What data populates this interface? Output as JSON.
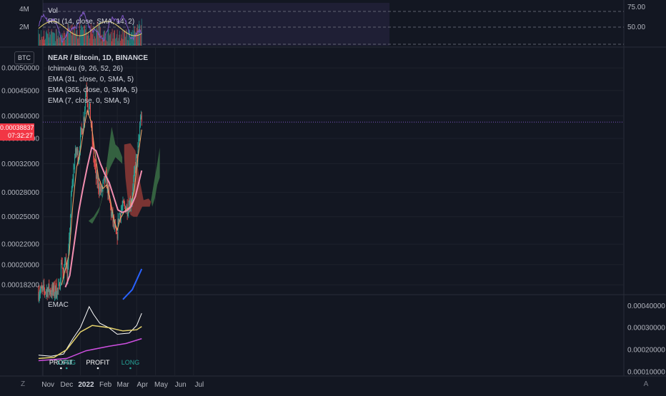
{
  "title": "NEAR / Bitcoin, 1D, BINANCE",
  "legend": {
    "main_title": "NEAR / Bitcoin, 1D, BINANCE",
    "ichimoku": "Ichimoku (9, 26, 52, 26)",
    "ema31": "EMA (31, close, 0, SMA, 5)",
    "ema365": "EMA (365, close, 0, SMA, 5)",
    "ema7": "EMA (7, close, 0, SMA, 5)",
    "vol": "Vol",
    "rsi": "RSI (14, close, SMA, 14, 2)",
    "emac": "EMAC"
  },
  "symbol_badge": "BTC",
  "price_tag": {
    "price": "0.00038837",
    "countdown": "07:32:27"
  },
  "corner_buttons": {
    "left": "Z",
    "right": "A"
  },
  "colors": {
    "up": "#26a69a",
    "down": "#ef5350",
    "ema7": "#f2a96b",
    "ema31": "#f48fb1",
    "ema365": "#2962ff",
    "cloud_green": "#3b6e45",
    "cloud_red": "#8e3a36",
    "rsi": "#7e57c2",
    "rsi_ma": "#e6d36b",
    "emac_white": "#ffffff",
    "emac_yellow": "#e6d36b",
    "emac_purple": "#ce4fe0",
    "current_price_line": "#7e57c2",
    "price_tag_bg": "#f23645"
  },
  "chart_data": [
    {
      "type": "candlestick",
      "title": "NEAR / Bitcoin, 1D, BINANCE",
      "y_scale": "log",
      "ylim": [
        0.000175,
        0.00054
      ],
      "y_ticks": [
        "0.00050000",
        "0.00045000",
        "0.00040000",
        "0.00036000",
        "0.00032000",
        "0.00028000",
        "0.00025000",
        "0.00022000",
        "0.00020000",
        "0.00018200"
      ],
      "x_ticks": [
        "Nov",
        "Dec",
        "2022",
        "Feb",
        "Mar",
        "Apr",
        "May",
        "Jun",
        "Jul"
      ],
      "current_price": 0.00038837,
      "close_path": [
        [
          "2021-10-26",
          0.000176
        ],
        [
          "2021-11-10",
          0.000178
        ],
        [
          "2021-11-20",
          0.000176
        ],
        [
          "2021-11-28",
          0.000178
        ],
        [
          "2021-12-02",
          0.000205
        ],
        [
          "2021-12-05",
          0.000186
        ],
        [
          "2021-12-08",
          0.00021
        ],
        [
          "2021-12-11",
          0.000188
        ],
        [
          "2021-12-14",
          0.00022
        ],
        [
          "2021-12-17",
          0.00027
        ],
        [
          "2021-12-20",
          0.0003
        ],
        [
          "2021-12-23",
          0.00033
        ],
        [
          "2021-12-26",
          0.00034
        ],
        [
          "2021-12-29",
          0.00033
        ],
        [
          "2022-01-01",
          0.00036
        ],
        [
          "2022-01-04",
          0.00038
        ],
        [
          "2022-01-07",
          0.0004
        ],
        [
          "2022-01-10",
          0.00046
        ],
        [
          "2022-01-13",
          0.00042
        ],
        [
          "2022-01-16",
          0.00041
        ],
        [
          "2022-01-19",
          0.00037
        ],
        [
          "2022-01-22",
          0.00033
        ],
        [
          "2022-01-26",
          0.0003
        ],
        [
          "2022-01-30",
          0.00029
        ],
        [
          "2022-02-03",
          0.00028
        ],
        [
          "2022-02-07",
          0.00029
        ],
        [
          "2022-02-10",
          0.0003
        ],
        [
          "2022-02-13",
          0.00029
        ],
        [
          "2022-02-16",
          0.00027
        ],
        [
          "2022-02-19",
          0.000255
        ],
        [
          "2022-02-22",
          0.000245
        ],
        [
          "2022-02-25",
          0.000235
        ],
        [
          "2022-02-28",
          0.000224
        ],
        [
          "2022-03-03",
          0.00025
        ],
        [
          "2022-03-07",
          0.000258
        ],
        [
          "2022-03-12",
          0.000262
        ],
        [
          "2022-03-17",
          0.000262
        ],
        [
          "2022-03-20",
          0.000265
        ],
        [
          "2022-03-24",
          0.000272
        ],
        [
          "2022-03-27",
          0.00029
        ],
        [
          "2022-03-30",
          0.00032
        ],
        [
          "2022-04-02",
          0.00033
        ],
        [
          "2022-04-05",
          0.00036
        ],
        [
          "2022-04-07",
          0.0004
        ],
        [
          "2022-04-09",
          0.000389
        ]
      ],
      "ema7": [
        [
          "2021-12-02",
          0.000182
        ],
        [
          "2021-12-08",
          0.000196
        ],
        [
          "2021-12-14",
          0.00021
        ],
        [
          "2021-12-20",
          0.000265
        ],
        [
          "2021-12-26",
          0.000315
        ],
        [
          "2022-01-01",
          0.00034
        ],
        [
          "2022-01-07",
          0.00038
        ],
        [
          "2022-01-12",
          0.00041
        ],
        [
          "2022-01-18",
          0.00039
        ],
        [
          "2022-01-24",
          0.00034
        ],
        [
          "2022-01-30",
          0.0003
        ],
        [
          "2022-02-06",
          0.000285
        ],
        [
          "2022-02-12",
          0.00029
        ],
        [
          "2022-02-18",
          0.00027
        ],
        [
          "2022-02-24",
          0.000245
        ],
        [
          "2022-03-01",
          0.000235
        ],
        [
          "2022-03-06",
          0.000248
        ],
        [
          "2022-03-14",
          0.000258
        ],
        [
          "2022-03-22",
          0.000262
        ],
        [
          "2022-03-28",
          0.000282
        ],
        [
          "2022-04-03",
          0.00033
        ],
        [
          "2022-04-09",
          0.000375
        ]
      ],
      "ema31": [
        [
          "2021-12-08",
          0.00018
        ],
        [
          "2021-12-15",
          0.00019
        ],
        [
          "2021-12-22",
          0.00022
        ],
        [
          "2021-12-29",
          0.000255
        ],
        [
          "2022-01-05",
          0.000285
        ],
        [
          "2022-01-12",
          0.000315
        ],
        [
          "2022-01-19",
          0.000345
        ],
        [
          "2022-01-26",
          0.00034
        ],
        [
          "2022-02-02",
          0.00032
        ],
        [
          "2022-02-09",
          0.000305
        ],
        [
          "2022-02-16",
          0.000293
        ],
        [
          "2022-02-23",
          0.000275
        ],
        [
          "2022-03-02",
          0.000258
        ],
        [
          "2022-03-09",
          0.000255
        ],
        [
          "2022-03-16",
          0.000257
        ],
        [
          "2022-03-23",
          0.000262
        ],
        [
          "2022-03-30",
          0.000275
        ],
        [
          "2022-04-09",
          0.00031
        ]
      ],
      "ema365": [
        [
          "2022-03-10",
          0.00017
        ],
        [
          "2022-03-25",
          0.000178
        ],
        [
          "2022-04-09",
          0.000196
        ]
      ]
    },
    {
      "type": "line",
      "title": "RSI (14, close, SMA, 14, 2)",
      "y_ticks": [
        "75.00",
        "50.00"
      ],
      "series": [
        {
          "name": "RSI",
          "values": []
        }
      ]
    },
    {
      "type": "bar",
      "title": "Vol",
      "y_ticks": [
        "4M",
        "2M"
      ],
      "values": []
    },
    {
      "type": "line",
      "title": "EMAC",
      "y_ticks": [
        "0.00040000",
        "0.00030000",
        "0.00020000",
        "0.00010000"
      ],
      "ylim": [
        9e-05,
        0.00043
      ],
      "annotations": [
        {
          "text": "PROFIT",
          "date": "2021-12-01"
        },
        {
          "text": "LONG",
          "date": "2021-12-10"
        },
        {
          "text": "PROFIT",
          "date": "2022-01-29"
        },
        {
          "text": "LONG",
          "date": "2022-03-22"
        }
      ],
      "white": [
        [
          "2021-10-26",
          0.000175
        ],
        [
          "2021-11-15",
          0.00017
        ],
        [
          "2021-12-05",
          0.00018
        ],
        [
          "2021-12-20",
          0.00025
        ],
        [
          "2022-01-01",
          0.0003
        ],
        [
          "2022-01-10",
          0.00036
        ],
        [
          "2022-01-15",
          0.000395
        ],
        [
          "2022-01-22",
          0.00036
        ],
        [
          "2022-02-01",
          0.00032
        ],
        [
          "2022-02-15",
          0.0003
        ],
        [
          "2022-03-01",
          0.00027
        ],
        [
          "2022-03-20",
          0.000275
        ],
        [
          "2022-04-01",
          0.00031
        ],
        [
          "2022-04-09",
          0.000365
        ]
      ],
      "yellow": [
        [
          "2021-10-26",
          0.00016
        ],
        [
          "2021-11-20",
          0.000165
        ],
        [
          "2021-12-10",
          0.0002
        ],
        [
          "2022-01-01",
          0.00028
        ],
        [
          "2022-01-20",
          0.00031
        ],
        [
          "2022-02-15",
          0.0003
        ],
        [
          "2022-03-10",
          0.000285
        ],
        [
          "2022-04-01",
          0.00029
        ],
        [
          "2022-04-09",
          0.000305
        ]
      ],
      "purple": [
        [
          "2021-10-26",
          0.00015
        ],
        [
          "2021-12-10",
          0.00016
        ],
        [
          "2022-01-10",
          0.000195
        ],
        [
          "2022-02-15",
          0.000215
        ],
        [
          "2022-03-15",
          0.000228
        ],
        [
          "2022-04-09",
          0.00025
        ]
      ]
    }
  ]
}
